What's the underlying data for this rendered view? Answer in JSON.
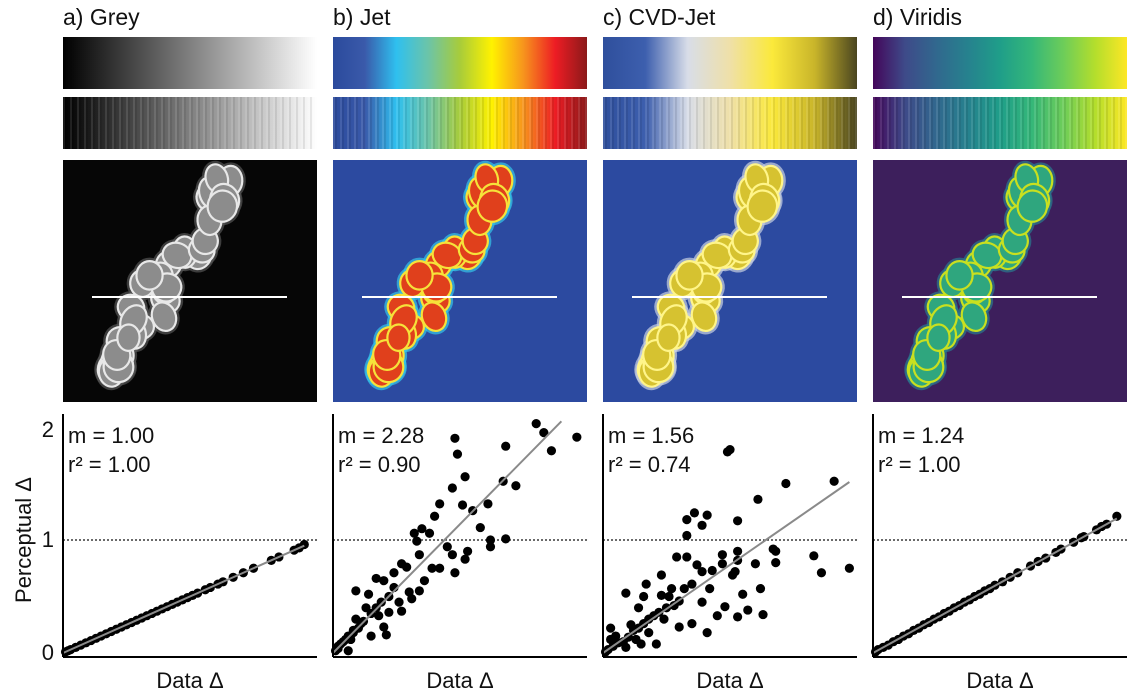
{
  "panels": [
    {
      "title": "a) Grey",
      "colormap": [
        "#000000",
        "#ffffff"
      ],
      "image_bg": "#060606",
      "cell_fill": "#8c8c8c",
      "cell_edge": "#e8e8e8",
      "cell_glow": "#555555"
    },
    {
      "title": "b) Jet",
      "colormap": [
        "#2b4a9c",
        "#3a5aaa",
        "#2fc0ef",
        "#6cc4a8",
        "#a8cc3a",
        "#fff200",
        "#f7941d",
        "#ed1c24",
        "#8b1a1a"
      ],
      "image_bg": "#2c4aa0",
      "cell_fill": "#e0401c",
      "cell_edge": "#f6e23a",
      "cell_glow": "#35c4e8"
    },
    {
      "title": "c) CVD-Jet",
      "colormap": [
        "#2f4f9c",
        "#3d5fae",
        "#d8dde8",
        "#efe0a8",
        "#fbe93b",
        "#c9b52a",
        "#4a4520"
      ],
      "image_bg": "#2c4aa0",
      "cell_fill": "#d6c230",
      "cell_edge": "#fff58a",
      "cell_glow": "#c8d0e0"
    },
    {
      "title": "d) Viridis",
      "colormap": [
        "#44065a",
        "#3e4a89",
        "#31688e",
        "#26828e",
        "#1f9e89",
        "#35b779",
        "#6dcd59",
        "#b4de2c",
        "#fde725"
      ],
      "image_bg": "#3d1f5c",
      "cell_fill": "#2fa67e",
      "cell_edge": "#c8e020",
      "cell_glow": "#2a7b8e"
    }
  ],
  "chart_data": [
    {
      "type": "scatter",
      "title": "a) Grey",
      "xlabel": "Data Δ",
      "ylabel": "Perceptual Δ",
      "yticks": [
        "0",
        "1",
        "2"
      ],
      "ylim": [
        0,
        2.05
      ],
      "xlim": [
        0,
        1
      ],
      "reference_line_y": 1,
      "fit_slope": 1.0,
      "annotation_m": "m = 1.00",
      "annotation_r2": "r² = 1.00",
      "points": [
        [
          0.01,
          0.01
        ],
        [
          0.02,
          0.02
        ],
        [
          0.03,
          0.03
        ],
        [
          0.05,
          0.05
        ],
        [
          0.07,
          0.07
        ],
        [
          0.09,
          0.09
        ],
        [
          0.11,
          0.11
        ],
        [
          0.13,
          0.13
        ],
        [
          0.15,
          0.15
        ],
        [
          0.17,
          0.17
        ],
        [
          0.19,
          0.19
        ],
        [
          0.21,
          0.21
        ],
        [
          0.23,
          0.23
        ],
        [
          0.25,
          0.25
        ],
        [
          0.27,
          0.27
        ],
        [
          0.29,
          0.29
        ],
        [
          0.31,
          0.31
        ],
        [
          0.33,
          0.33
        ],
        [
          0.35,
          0.35
        ],
        [
          0.37,
          0.37
        ],
        [
          0.39,
          0.39
        ],
        [
          0.41,
          0.41
        ],
        [
          0.43,
          0.43
        ],
        [
          0.45,
          0.45
        ],
        [
          0.47,
          0.47
        ],
        [
          0.49,
          0.49
        ],
        [
          0.51,
          0.51
        ],
        [
          0.53,
          0.53
        ],
        [
          0.56,
          0.56
        ],
        [
          0.58,
          0.58
        ],
        [
          0.61,
          0.61
        ],
        [
          0.63,
          0.63
        ],
        [
          0.67,
          0.67
        ],
        [
          0.71,
          0.71
        ],
        [
          0.75,
          0.75
        ],
        [
          0.82,
          0.82
        ],
        [
          0.85,
          0.85
        ],
        [
          0.91,
          0.91
        ],
        [
          0.93,
          0.93
        ],
        [
          0.95,
          0.96
        ]
      ]
    },
    {
      "type": "scatter",
      "title": "b) Jet",
      "xlabel": "Data Δ",
      "ylim": [
        0,
        2.05
      ],
      "xlim": [
        0,
        1
      ],
      "reference_line_y": 1,
      "fit_slope": 2.28,
      "annotation_m": "m = 2.28",
      "annotation_r2": "r² = 0.90",
      "points": [
        [
          0.48,
          1.9
        ],
        [
          0.49,
          1.76
        ],
        [
          0.8,
          2.03
        ],
        [
          0.83,
          1.95
        ],
        [
          0.96,
          1.91
        ],
        [
          0.86,
          1.79
        ],
        [
          0.68,
          1.83
        ],
        [
          0.67,
          1.52
        ],
        [
          0.72,
          1.48
        ],
        [
          0.52,
          1.56
        ],
        [
          0.47,
          1.46
        ],
        [
          0.42,
          1.32
        ],
        [
          0.51,
          1.31
        ],
        [
          0.61,
          1.32
        ],
        [
          0.55,
          1.26
        ],
        [
          0.4,
          1.21
        ],
        [
          0.58,
          1.11
        ],
        [
          0.35,
          1.1
        ],
        [
          0.38,
          1.06
        ],
        [
          0.33,
          0.99
        ],
        [
          0.45,
          0.94
        ],
        [
          0.47,
          0.87
        ],
        [
          0.53,
          0.9
        ],
        [
          0.52,
          0.83
        ],
        [
          0.62,
          1.0
        ],
        [
          0.68,
          1.01
        ],
        [
          0.62,
          0.94
        ],
        [
          0.34,
          0.87
        ],
        [
          0.27,
          0.79
        ],
        [
          0.24,
          0.71
        ],
        [
          0.2,
          0.64
        ],
        [
          0.17,
          0.66
        ],
        [
          0.39,
          0.75
        ],
        [
          0.42,
          0.75
        ],
        [
          0.48,
          0.71
        ],
        [
          0.36,
          0.64
        ],
        [
          0.34,
          0.55
        ],
        [
          0.31,
          0.48
        ],
        [
          0.26,
          0.45
        ],
        [
          0.09,
          0.55
        ],
        [
          0.14,
          0.52
        ],
        [
          0.13,
          0.4
        ],
        [
          0.18,
          0.33
        ],
        [
          0.22,
          0.36
        ],
        [
          0.21,
          0.16
        ],
        [
          0.15,
          0.15
        ],
        [
          0.11,
          0.26
        ],
        [
          0.08,
          0.2
        ],
        [
          0.05,
          0.12
        ],
        [
          0.02,
          0.06
        ],
        [
          0.06,
          0.02
        ],
        [
          0.27,
          0.37
        ],
        [
          0.3,
          0.54
        ],
        [
          0.2,
          0.23
        ],
        [
          0.29,
          0.76
        ],
        [
          0.32,
          1.06
        ],
        [
          0.03,
          0.08
        ],
        [
          0.04,
          0.1
        ],
        [
          0.06,
          0.15
        ],
        [
          0.08,
          0.18
        ],
        [
          0.1,
          0.22
        ],
        [
          0.12,
          0.28
        ],
        [
          0.07,
          0.12
        ],
        [
          0.09,
          0.3
        ],
        [
          0.15,
          0.35
        ],
        [
          0.17,
          0.4
        ],
        [
          0.19,
          0.45
        ],
        [
          0.22,
          0.5
        ],
        [
          0.24,
          0.58
        ],
        [
          0.01,
          0.02
        ],
        [
          0.02,
          0.04
        ]
      ]
    },
    {
      "type": "scatter",
      "title": "c) CVD-Jet",
      "xlabel": "Data Δ",
      "ylim": [
        0,
        2.05
      ],
      "xlim": [
        0,
        1
      ],
      "reference_line_y": 1,
      "fit_slope": 1.56,
      "annotation_m": "m = 1.56",
      "annotation_r2": "r² = 0.74",
      "points": [
        [
          0.49,
          1.78
        ],
        [
          0.5,
          1.8
        ],
        [
          0.72,
          1.5
        ],
        [
          0.91,
          1.52
        ],
        [
          0.61,
          1.36
        ],
        [
          0.36,
          1.24
        ],
        [
          0.33,
          1.18
        ],
        [
          0.41,
          1.22
        ],
        [
          0.39,
          1.13
        ],
        [
          0.53,
          1.17
        ],
        [
          0.33,
          1.04
        ],
        [
          0.67,
          0.92
        ],
        [
          0.68,
          0.9
        ],
        [
          0.83,
          0.86
        ],
        [
          0.86,
          0.71
        ],
        [
          0.97,
          0.75
        ],
        [
          0.68,
          0.8
        ],
        [
          0.6,
          0.79
        ],
        [
          0.29,
          0.85
        ],
        [
          0.33,
          0.85
        ],
        [
          0.47,
          0.87
        ],
        [
          0.53,
          0.9
        ],
        [
          0.53,
          0.82
        ],
        [
          0.37,
          0.78
        ],
        [
          0.47,
          0.79
        ],
        [
          0.43,
          0.73
        ],
        [
          0.39,
          0.72
        ],
        [
          0.52,
          0.72
        ],
        [
          0.51,
          0.69
        ],
        [
          0.23,
          0.69
        ],
        [
          0.27,
          0.57
        ],
        [
          0.17,
          0.61
        ],
        [
          0.09,
          0.53
        ],
        [
          0.16,
          0.5
        ],
        [
          0.35,
          0.61
        ],
        [
          0.32,
          0.57
        ],
        [
          0.42,
          0.57
        ],
        [
          0.62,
          0.57
        ],
        [
          0.55,
          0.52
        ],
        [
          0.39,
          0.45
        ],
        [
          0.23,
          0.51
        ],
        [
          0.48,
          0.41
        ],
        [
          0.57,
          0.38
        ],
        [
          0.53,
          0.32
        ],
        [
          0.45,
          0.33
        ],
        [
          0.63,
          0.34
        ],
        [
          0.14,
          0.4
        ],
        [
          0.35,
          0.26
        ],
        [
          0.41,
          0.18
        ],
        [
          0.3,
          0.23
        ],
        [
          0.21,
          0.08
        ],
        [
          0.03,
          0.22
        ],
        [
          0.15,
          0.08
        ],
        [
          0.02,
          0.03
        ],
        [
          0.04,
          0.06
        ],
        [
          0.06,
          0.09
        ],
        [
          0.08,
          0.1
        ],
        [
          0.1,
          0.14
        ],
        [
          0.12,
          0.2
        ],
        [
          0.14,
          0.22
        ],
        [
          0.16,
          0.26
        ],
        [
          0.18,
          0.3
        ],
        [
          0.2,
          0.33
        ],
        [
          0.22,
          0.36
        ],
        [
          0.25,
          0.4
        ],
        [
          0.05,
          0.15
        ],
        [
          0.09,
          0.05
        ],
        [
          0.13,
          0.12
        ],
        [
          0.18,
          0.18
        ],
        [
          0.24,
          0.3
        ],
        [
          0.28,
          0.42
        ],
        [
          0.3,
          0.46
        ],
        [
          0.26,
          0.5
        ],
        [
          0.01,
          0.01
        ],
        [
          0.03,
          0.12
        ],
        [
          0.11,
          0.25
        ]
      ]
    },
    {
      "type": "scatter",
      "title": "d) Viridis",
      "xlabel": "Data Δ",
      "ylim": [
        0,
        2.05
      ],
      "xlim": [
        0,
        1
      ],
      "reference_line_y": 1,
      "fit_slope": 1.24,
      "annotation_m": "m = 1.24",
      "annotation_r2": "r² = 1.00",
      "points": [
        [
          0.01,
          0.01
        ],
        [
          0.02,
          0.03
        ],
        [
          0.04,
          0.05
        ],
        [
          0.06,
          0.07
        ],
        [
          0.08,
          0.1
        ],
        [
          0.1,
          0.12
        ],
        [
          0.12,
          0.15
        ],
        [
          0.14,
          0.17
        ],
        [
          0.16,
          0.2
        ],
        [
          0.18,
          0.22
        ],
        [
          0.2,
          0.25
        ],
        [
          0.22,
          0.27
        ],
        [
          0.24,
          0.3
        ],
        [
          0.26,
          0.32
        ],
        [
          0.28,
          0.35
        ],
        [
          0.3,
          0.37
        ],
        [
          0.32,
          0.4
        ],
        [
          0.34,
          0.42
        ],
        [
          0.36,
          0.45
        ],
        [
          0.38,
          0.47
        ],
        [
          0.4,
          0.5
        ],
        [
          0.42,
          0.52
        ],
        [
          0.44,
          0.55
        ],
        [
          0.46,
          0.57
        ],
        [
          0.48,
          0.6
        ],
        [
          0.51,
          0.63
        ],
        [
          0.54,
          0.67
        ],
        [
          0.57,
          0.71
        ],
        [
          0.62,
          0.77
        ],
        [
          0.65,
          0.81
        ],
        [
          0.68,
          0.84
        ],
        [
          0.72,
          0.89
        ],
        [
          0.74,
          0.92
        ],
        [
          0.79,
          0.98
        ],
        [
          0.82,
          1.02
        ],
        [
          0.83,
          1.03
        ],
        [
          0.88,
          1.09
        ],
        [
          0.9,
          1.12
        ],
        [
          0.92,
          1.14
        ],
        [
          0.96,
          1.21
        ]
      ]
    }
  ]
}
